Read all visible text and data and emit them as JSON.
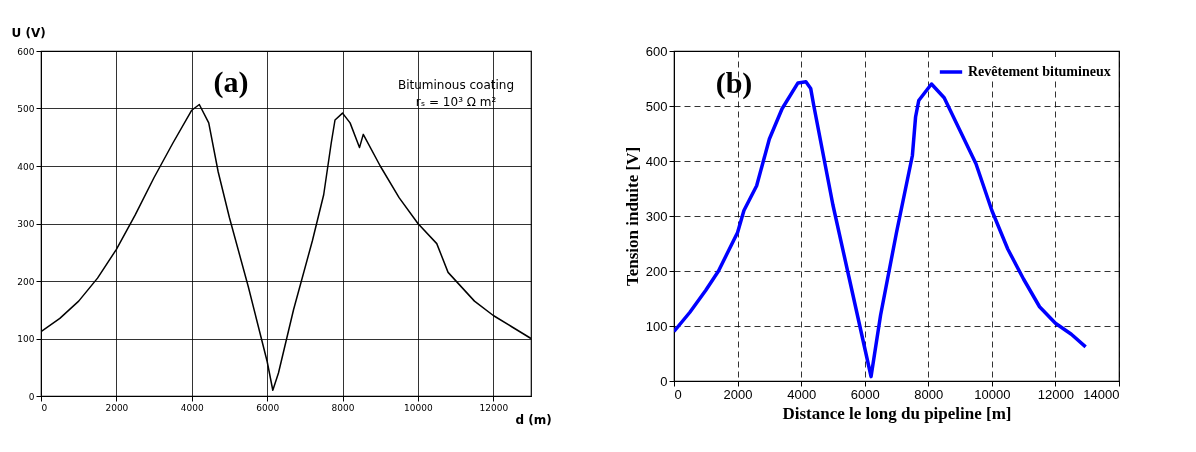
{
  "chart_data": [
    {
      "type": "line",
      "xlabel": "d (m)",
      "ylabel": "U (V)",
      "xlim": [
        0,
        13000
      ],
      "ylim": [
        0,
        600
      ],
      "xticks": [
        0,
        2000,
        4000,
        6000,
        8000,
        10000,
        12000
      ],
      "yticks": [
        0,
        100,
        200,
        300,
        400,
        500,
        600
      ],
      "grid": true,
      "annotations": [
        "(a)",
        "Bituminous coating",
        "rₛ = 10³ Ω m²"
      ],
      "series": [
        {
          "color": "#000000",
          "x": [
            0,
            500,
            1000,
            1500,
            2000,
            2500,
            3000,
            3500,
            4000,
            4200,
            4450,
            4700,
            5000,
            5500,
            6000,
            6150,
            6300,
            6700,
            7200,
            7500,
            7700,
            7800,
            8000,
            8200,
            8450,
            8550,
            9000,
            9500,
            10000,
            10500,
            10800,
            11500,
            12000,
            12500,
            13000
          ],
          "values": [
            112,
            135,
            165,
            205,
            255,
            315,
            380,
            440,
            497,
            507,
            475,
            390,
            310,
            190,
            60,
            10,
            40,
            150,
            270,
            350,
            440,
            480,
            492,
            475,
            432,
            455,
            400,
            345,
            300,
            265,
            215,
            165,
            140,
            120,
            100
          ]
        }
      ]
    },
    {
      "type": "line",
      "xlabel": "Distance le long du pipeline [m]",
      "ylabel": "Tension induite [V]",
      "xlim": [
        0,
        14000
      ],
      "ylim": [
        0,
        600
      ],
      "xticks": [
        0,
        2000,
        4000,
        6000,
        8000,
        10000,
        12000,
        14000
      ],
      "yticks": [
        0,
        100,
        200,
        300,
        400,
        500,
        600
      ],
      "grid": true,
      "legend": "top right",
      "annotations": [
        "(b)"
      ],
      "series": [
        {
          "name": "Revêtement bitumineux",
          "color": "#0000ff",
          "x": [
            0,
            500,
            1000,
            1400,
            2000,
            2200,
            2600,
            3000,
            3400,
            3900,
            4150,
            4300,
            4400,
            5000,
            5500,
            6000,
            6200,
            6500,
            7000,
            7500,
            7600,
            7700,
            8100,
            8500,
            9000,
            9500,
            10000,
            10500,
            11000,
            11500,
            12000,
            12500,
            12950
          ],
          "values": [
            90,
            125,
            165,
            200,
            270,
            310,
            355,
            440,
            495,
            542,
            544,
            532,
            500,
            320,
            190,
            60,
            8,
            120,
            270,
            410,
            480,
            510,
            540,
            515,
            455,
            395,
            310,
            240,
            185,
            135,
            105,
            85,
            62
          ]
        }
      ]
    }
  ]
}
